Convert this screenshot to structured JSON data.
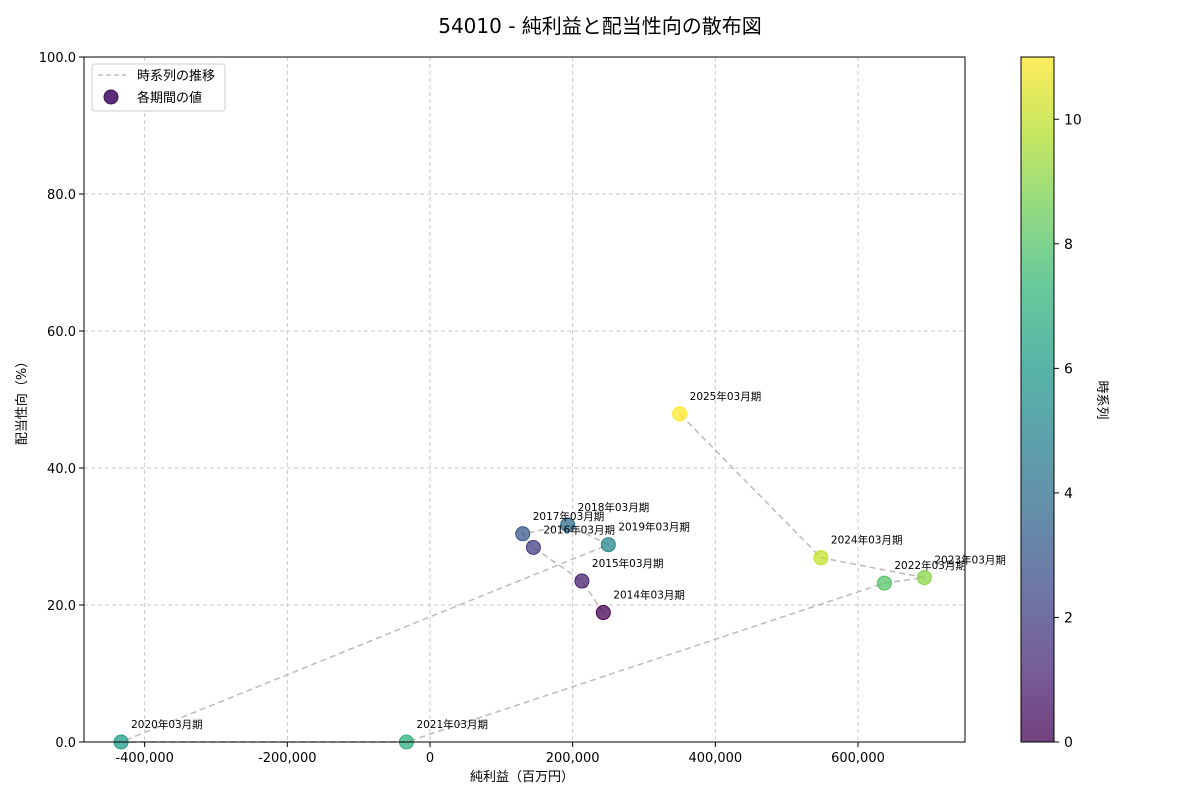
{
  "chart_data": {
    "type": "scatter",
    "title": "54010 - 純利益と配当性向の散布図",
    "xlabel": "純利益（百万円）",
    "ylabel": "配当性向（%）",
    "xlim": [
      -485000,
      750000
    ],
    "ylim": [
      0,
      100
    ],
    "x_ticks": [
      -400000,
      -200000,
      0,
      200000,
      400000,
      600000
    ],
    "x_tick_labels": [
      "-400,000",
      "-200,000",
      "0",
      "200,000",
      "400,000",
      "600,000"
    ],
    "y_ticks": [
      0,
      20,
      40,
      60,
      80,
      100
    ],
    "y_tick_labels": [
      "0.0",
      "20.0",
      "40.0",
      "60.0",
      "80.0",
      "100.0"
    ],
    "grid": true,
    "legend": {
      "position": "top-left",
      "line_label": "時系列の推移",
      "point_label": "各期間の値"
    },
    "colorbar": {
      "label": "時系列",
      "range": [
        0,
        11
      ],
      "ticks": [
        0,
        2,
        4,
        6,
        8,
        10
      ],
      "tick_labels": [
        "0",
        "2",
        "4",
        "6",
        "8",
        "10"
      ],
      "colormap": [
        "#440154",
        "#482878",
        "#3e4989",
        "#31688e",
        "#26828e",
        "#1f9e89",
        "#35b779",
        "#6ece58",
        "#b5de2b",
        "#fde725"
      ]
    },
    "points": [
      {
        "label": "2014年03月期",
        "x": 243000,
        "y": 18.9,
        "t": 0
      },
      {
        "label": "2015年03月期",
        "x": 213000,
        "y": 23.5,
        "t": 1
      },
      {
        "label": "2016年03月期",
        "x": 145000,
        "y": 28.4,
        "t": 2
      },
      {
        "label": "2017年03月期",
        "x": 130000,
        "y": 30.4,
        "t": 3
      },
      {
        "label": "2018年03月期",
        "x": 193000,
        "y": 31.7,
        "t": 4
      },
      {
        "label": "2019年03月期",
        "x": 250000,
        "y": 28.8,
        "t": 5
      },
      {
        "label": "2020年03月期",
        "x": -433000,
        "y": 0.0,
        "t": 6
      },
      {
        "label": "2021年03月期",
        "x": -33000,
        "y": 0.0,
        "t": 7
      },
      {
        "label": "2022年03月期",
        "x": 637000,
        "y": 23.2,
        "t": 8
      },
      {
        "label": "2023年03月期",
        "x": 693000,
        "y": 24.0,
        "t": 9
      },
      {
        "label": "2024年03月期",
        "x": 548000,
        "y": 26.9,
        "t": 10
      },
      {
        "label": "2025年03月期",
        "x": 350000,
        "y": 47.9,
        "t": 11
      }
    ],
    "line_color": "#bbbbbb"
  }
}
